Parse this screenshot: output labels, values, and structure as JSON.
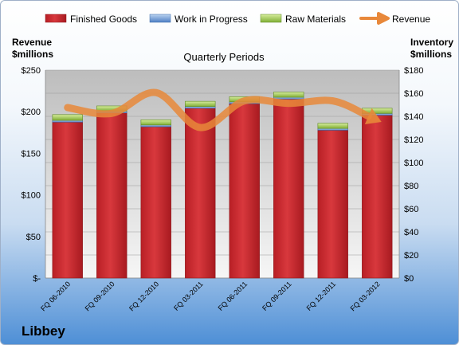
{
  "chart_data": {
    "type": "bar",
    "title": "Quarterly Periods",
    "brand": "Libbey",
    "categories": [
      "FQ 06-2010",
      "FQ 09-2010",
      "FQ 12-2010",
      "FQ 03-2011",
      "FQ 06-2011",
      "FQ 09-2011",
      "FQ 12-2011",
      "FQ 03-2012"
    ],
    "left_axis": {
      "label_line1": "Revenue",
      "label_line2": "$millions",
      "ylim": [
        0,
        250
      ],
      "ticks": [
        0,
        50,
        100,
        150,
        200,
        250
      ],
      "tick_labels": [
        "$-",
        "$50",
        "$100",
        "$150",
        "$200",
        "$250"
      ]
    },
    "right_axis": {
      "label_line1": "Inventory",
      "label_line2": "$millions",
      "ylim": [
        0,
        180
      ],
      "ticks": [
        0,
        20,
        40,
        60,
        80,
        100,
        120,
        140,
        160,
        180
      ],
      "tick_labels": [
        "$0",
        "$20",
        "$40",
        "$60",
        "$80",
        "$100",
        "$120",
        "$140",
        "$160",
        "$180"
      ]
    },
    "series": [
      {
        "name": "Finished Goods",
        "type": "bar",
        "axis": "right",
        "color": "#c0282e",
        "values": [
          135,
          143,
          131,
          147,
          151,
          155,
          128,
          141
        ]
      },
      {
        "name": "Work in Progress",
        "type": "bar",
        "axis": "right",
        "color": "#5b8fd0",
        "values": [
          1.5,
          1.5,
          1.5,
          1.5,
          1.5,
          1.5,
          1.5,
          1.5
        ]
      },
      {
        "name": "Raw Materials",
        "type": "bar",
        "axis": "right",
        "color": "#8fbf3f",
        "values": [
          5,
          4.5,
          4.5,
          4.5,
          4.5,
          4.5,
          4.5,
          4.5
        ]
      },
      {
        "name": "Revenue",
        "type": "line",
        "axis": "left",
        "color": "#e8883a",
        "values": [
          205,
          198,
          223,
          181,
          213,
          210,
          213,
          190
        ]
      }
    ],
    "grid": true,
    "legend_position": "top"
  }
}
